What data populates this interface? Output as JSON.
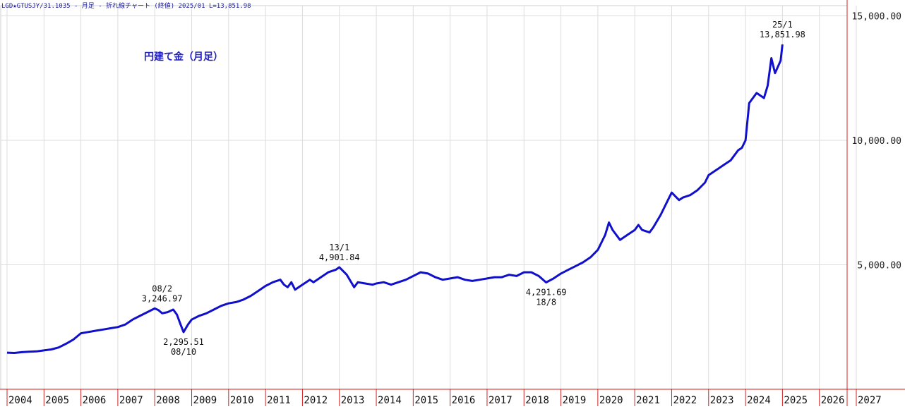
{
  "header": {
    "text": "LGD★GTUSJY/31.1035 - 月足 - 折れ線チャート (終値) 2025/01 L=13,851.98"
  },
  "chart_data": {
    "type": "line",
    "title": "円建て金（月足）",
    "xlabel": "",
    "ylabel": "",
    "xlim": [
      2004.0,
      2027.0
    ],
    "ylim": [
      0,
      15000
    ],
    "grid": true,
    "line_color": "#1010cc",
    "grid_color": "#dddddd",
    "axis_color": "#cc2222",
    "y_ticks": [
      {
        "value": 5000,
        "label": "5,000.00"
      },
      {
        "value": 10000,
        "label": "10,000.00"
      },
      {
        "value": 15000,
        "label": "15,000.00"
      }
    ],
    "x_ticks": [
      "2004",
      "2005",
      "2006",
      "2007",
      "2008",
      "2009",
      "2010",
      "2011",
      "2012",
      "2013",
      "2014",
      "2015",
      "2016",
      "2017",
      "2018",
      "2019",
      "2020",
      "2021",
      "2022",
      "2023",
      "2024",
      "2025",
      "2026",
      "2027"
    ],
    "series": [
      {
        "x": [
          2004.0,
          2004.2,
          2004.4,
          2004.6,
          2004.8,
          2005.0,
          2005.2,
          2005.4,
          2005.6,
          2005.8,
          2006.0,
          2006.2,
          2006.4,
          2006.6,
          2006.8,
          2007.0,
          2007.2,
          2007.4,
          2007.6,
          2007.8,
          2008.0,
          2008.1,
          2008.2,
          2008.35,
          2008.5,
          2008.6,
          2008.7,
          2008.78,
          2008.9,
          2009.0,
          2009.2,
          2009.4,
          2009.6,
          2009.8,
          2010.0,
          2010.2,
          2010.4,
          2010.6,
          2010.8,
          2011.0,
          2011.2,
          2011.4,
          2011.5,
          2011.6,
          2011.7,
          2011.8,
          2012.0,
          2012.2,
          2012.3,
          2012.5,
          2012.7,
          2012.9,
          2013.0,
          2013.1,
          2013.2,
          2013.4,
          2013.5,
          2013.7,
          2013.9,
          2014.0,
          2014.2,
          2014.4,
          2014.6,
          2014.8,
          2015.0,
          2015.2,
          2015.4,
          2015.6,
          2015.8,
          2016.0,
          2016.2,
          2016.4,
          2016.6,
          2016.8,
          2017.0,
          2017.2,
          2017.4,
          2017.6,
          2017.8,
          2018.0,
          2018.2,
          2018.4,
          2018.6,
          2018.8,
          2019.0,
          2019.2,
          2019.4,
          2019.6,
          2019.8,
          2020.0,
          2020.2,
          2020.3,
          2020.4,
          2020.6,
          2020.8,
          2021.0,
          2021.1,
          2021.2,
          2021.4,
          2021.5,
          2021.7,
          2021.9,
          2022.0,
          2022.2,
          2022.3,
          2022.5,
          2022.7,
          2022.9,
          2023.0,
          2023.2,
          2023.4,
          2023.6,
          2023.8,
          2023.9,
          2024.0,
          2024.1,
          2024.3,
          2024.5,
          2024.6,
          2024.7,
          2024.8,
          2024.95,
          2025.0
        ],
        "y": [
          1470,
          1460,
          1490,
          1510,
          1520,
          1560,
          1600,
          1680,
          1830,
          2000,
          2250,
          2300,
          2350,
          2400,
          2450,
          2500,
          2600,
          2800,
          2950,
          3100,
          3246.97,
          3180,
          3050,
          3100,
          3200,
          3000,
          2600,
          2295.51,
          2600,
          2800,
          2950,
          3050,
          3200,
          3350,
          3450,
          3500,
          3600,
          3750,
          3950,
          4150,
          4300,
          4400,
          4200,
          4100,
          4300,
          4000,
          4200,
          4400,
          4300,
          4500,
          4700,
          4800,
          4901.84,
          4750,
          4600,
          4100,
          4300,
          4250,
          4200,
          4250,
          4300,
          4200,
          4300,
          4400,
          4550,
          4700,
          4650,
          4500,
          4400,
          4450,
          4500,
          4400,
          4350,
          4400,
          4450,
          4500,
          4500,
          4600,
          4550,
          4700,
          4700,
          4550,
          4291.69,
          4450,
          4650,
          4800,
          4950,
          5100,
          5300,
          5600,
          6200,
          6700,
          6400,
          6000,
          6200,
          6400,
          6600,
          6400,
          6300,
          6500,
          7000,
          7600,
          7900,
          7600,
          7700,
          7800,
          8000,
          8300,
          8600,
          8800,
          9000,
          9200,
          9600,
          9700,
          10000,
          11500,
          11900,
          11700,
          12200,
          13300,
          12700,
          13200,
          13851.98
        ]
      }
    ],
    "annotations": [
      {
        "x": 2008.2,
        "y": 3246.97,
        "date": "08/2",
        "value": "3,246.97",
        "position": "above"
      },
      {
        "x": 2008.78,
        "y": 2295.51,
        "date": "08/10",
        "value": "2,295.51",
        "position": "below"
      },
      {
        "x": 2013.0,
        "y": 4901.84,
        "date": "13/1",
        "value": "4,901.84",
        "position": "above"
      },
      {
        "x": 2018.6,
        "y": 4291.69,
        "date": "18/8",
        "value": "4,291.69",
        "position": "below"
      },
      {
        "x": 2025.0,
        "y": 13851.98,
        "date": "25/1",
        "value": "13,851.98",
        "position": "above"
      }
    ]
  }
}
